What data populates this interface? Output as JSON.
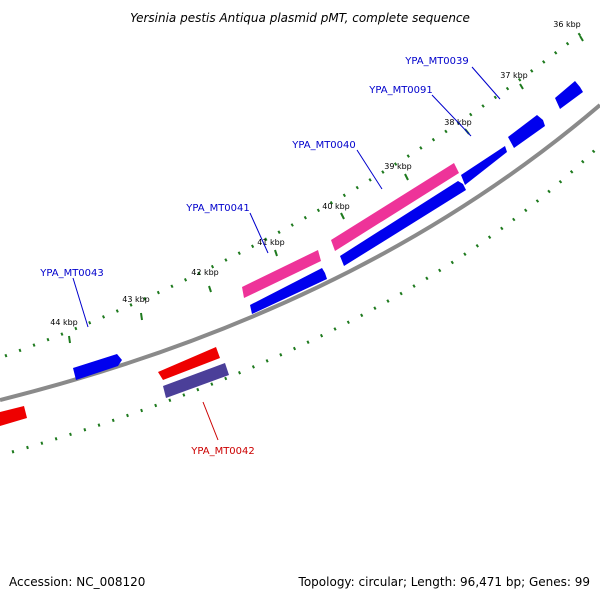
{
  "title": "Yersinia pestis Antiqua plasmid pMT, complete sequence",
  "footer": {
    "accession": "Accession: NC_008120",
    "summary": "Topology: circular; Length: 96,471 bp; Genes: 99"
  },
  "colors": {
    "backbone": "#8a8a8a",
    "ticks": "#1e7a1e",
    "forward_gene": "#0000ee",
    "reverse_gene": "#ee0000",
    "pseudo_gene": "#ee3399",
    "other_gene": "#4b3f99",
    "label_forward": "#0000cc",
    "label_reverse": "#cc0000"
  },
  "ticks": [
    {
      "label": "36 kbp"
    },
    {
      "label": "37 kbp"
    },
    {
      "label": "38 kbp"
    },
    {
      "label": "39 kbp"
    },
    {
      "label": "40 kbp"
    },
    {
      "label": "41 kbp"
    },
    {
      "label": "42 kbp"
    },
    {
      "label": "43 kbp"
    },
    {
      "label": "44 kbp"
    }
  ],
  "gene_labels": [
    {
      "text": "YPA_MT0039",
      "strand": "forward"
    },
    {
      "text": "YPA_MT0091",
      "strand": "forward"
    },
    {
      "text": "YPA_MT0040",
      "strand": "forward"
    },
    {
      "text": "YPA_MT0041",
      "strand": "forward"
    },
    {
      "text": "YPA_MT0043",
      "strand": "forward"
    },
    {
      "text": "YPA_MT0042",
      "strand": "reverse"
    }
  ]
}
